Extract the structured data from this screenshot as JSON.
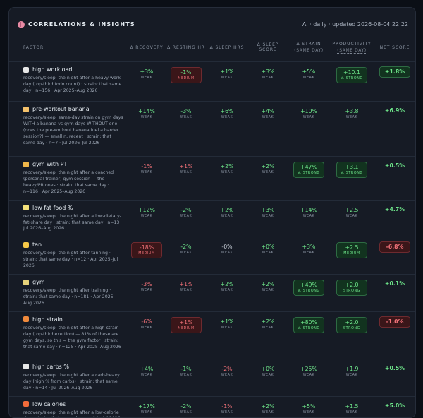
{
  "header": {
    "title": "CORRELATIONS & INSIGHTS",
    "meta": "AI · daily · updated 2026-08-04 22:22"
  },
  "columns": {
    "factor": "FACTOR",
    "recovery": "Δ RECOVERY",
    "resting_hr": "Δ RESTING HR",
    "sleep_hrs": "Δ SLEEP HRS",
    "sleep_score": "Δ SLEEP SCORE",
    "strain": "Δ STRAIN",
    "strain_sub": "(SAME DAY)",
    "productivity": "PRODUCTIVITY",
    "productivity_sub": "(SAME DAY)",
    "net": "NET SCORE"
  },
  "colors": {
    "positive": "#6ee58a",
    "negative": "#f07178",
    "neutral": "#c4cbd4"
  },
  "rows": [
    {
      "name": "high workload",
      "icon": "chart-icon",
      "icon_color": "#e6e6e6",
      "desc": "recovery/sleep: the night after a heavy-work day (top-third todo count) · strain: that same day · n=156 · Apr 2025–Aug 2026",
      "recovery": {
        "v": "+3%",
        "l": "WEAK"
      },
      "resting_hr": {
        "v": "-1%",
        "l": "MEDIUM"
      },
      "sleep_hrs": {
        "v": "+1%",
        "l": "WEAK"
      },
      "sleep_score": {
        "v": "+3%",
        "l": "WEAK"
      },
      "strain": {
        "v": "+5%",
        "l": "WEAK"
      },
      "productivity": {
        "v": "+10.1",
        "l": "V. STRONG"
      },
      "net": {
        "v": "+1.8%"
      }
    },
    {
      "name": "pre-workout banana",
      "icon": "muscle-icon",
      "icon_color": "#f5c26b",
      "desc": "recovery/sleep: same-day strain on gym days WITH a banana vs gym days WITHOUT one (does the pre-workout banana fuel a harder session?) — small n, recent · strain: that same day · n=7 · Jul 2026–Jul 2026",
      "recovery": {
        "v": "+14%",
        "l": "WEAK"
      },
      "resting_hr": {
        "v": "-3%",
        "l": "WEAK"
      },
      "sleep_hrs": {
        "v": "+6%",
        "l": "WEAK"
      },
      "sleep_score": {
        "v": "+4%",
        "l": "WEAK"
      },
      "strain": {
        "v": "+10%",
        "l": "WEAK"
      },
      "productivity": {
        "v": "+3.8",
        "l": "WEAK"
      },
      "net": {
        "v": "+6.9%"
      }
    },
    {
      "name": "gym with PT",
      "icon": "trainer-icon",
      "icon_color": "#f0b74a",
      "desc": "recovery/sleep: the night after a coached (personal-trainer) gym session — the heavy/PR ones · strain: that same day · n=116 · Apr 2025–Aug 2026",
      "recovery": {
        "v": "-1%",
        "l": "WEAK"
      },
      "resting_hr": {
        "v": "+1%",
        "l": "WEAK"
      },
      "sleep_hrs": {
        "v": "+2%",
        "l": "WEAK"
      },
      "sleep_score": {
        "v": "+2%",
        "l": "WEAK"
      },
      "strain": {
        "v": "+47%",
        "l": "V. STRONG"
      },
      "productivity": {
        "v": "+3.1",
        "l": "V. STRONG"
      },
      "net": {
        "v": "+0.5%"
      }
    },
    {
      "name": "low fat food %",
      "icon": "butter-icon",
      "icon_color": "#f3e07a",
      "desc": "recovery/sleep: the night after a low-dietary-fat-share day · strain: that same day · n=13 · Jul 2026–Aug 2026",
      "recovery": {
        "v": "+12%",
        "l": "WEAK"
      },
      "resting_hr": {
        "v": "-2%",
        "l": "WEAK"
      },
      "sleep_hrs": {
        "v": "+2%",
        "l": "WEAK"
      },
      "sleep_score": {
        "v": "+3%",
        "l": "WEAK"
      },
      "strain": {
        "v": "+14%",
        "l": "WEAK"
      },
      "productivity": {
        "v": "+2.5",
        "l": "WEAK"
      },
      "net": {
        "v": "+4.7%"
      }
    },
    {
      "name": "tan",
      "icon": "sun-icon",
      "icon_color": "#f7c948",
      "desc": "recovery/sleep: the night after tanning · strain: that same day · n=12 · Apr 2025–Jul 2026",
      "recovery": {
        "v": "-18%",
        "l": "MEDIUM"
      },
      "resting_hr": {
        "v": "-2%",
        "l": "WEAK"
      },
      "sleep_hrs": {
        "v": "-0%",
        "l": "WEAK"
      },
      "sleep_score": {
        "v": "+0%",
        "l": "WEAK"
      },
      "strain": {
        "v": "+3%",
        "l": "WEAK"
      },
      "productivity": {
        "v": "+2.5",
        "l": "MEDIUM"
      },
      "net": {
        "v": "-6.8%"
      }
    },
    {
      "name": "gym",
      "icon": "dumbbell-icon",
      "icon_color": "#e6d27a",
      "desc": "recovery/sleep: the night after training · strain: that same day · n=181 · Apr 2025–Aug 2026",
      "recovery": {
        "v": "-3%",
        "l": "WEAK"
      },
      "resting_hr": {
        "v": "+1%",
        "l": "WEAK"
      },
      "sleep_hrs": {
        "v": "+2%",
        "l": "WEAK"
      },
      "sleep_score": {
        "v": "+2%",
        "l": "WEAK"
      },
      "strain": {
        "v": "+49%",
        "l": "V. STRONG"
      },
      "productivity": {
        "v": "+2.0",
        "l": "STRONG"
      },
      "net": {
        "v": "+0.1%"
      }
    },
    {
      "name": "high strain",
      "icon": "strain-icon",
      "icon_color": "#f08a3c",
      "desc": "recovery/sleep: the night after a high-strain day (top-third exertion) — 81% of these are gym days, so this ≈ the gym factor · strain: that same day · n=125 · Apr 2025–Aug 2026",
      "recovery": {
        "v": "-6%",
        "l": "WEAK"
      },
      "resting_hr": {
        "v": "+1%",
        "l": "MEDIUM"
      },
      "sleep_hrs": {
        "v": "+1%",
        "l": "WEAK"
      },
      "sleep_score": {
        "v": "+2%",
        "l": "WEAK"
      },
      "strain": {
        "v": "+80%",
        "l": "V. STRONG"
      },
      "productivity": {
        "v": "+2.0",
        "l": "STRONG"
      },
      "net": {
        "v": "-1.0%"
      }
    },
    {
      "name": "high carbs %",
      "icon": "rice-icon",
      "icon_color": "#e8e8e8",
      "desc": "recovery/sleep: the night after a carb-heavy day (high % from carbs) · strain: that same day · n=14 · Jul 2026–Aug 2026",
      "recovery": {
        "v": "+4%",
        "l": "WEAK"
      },
      "resting_hr": {
        "v": "-1%",
        "l": "WEAK"
      },
      "sleep_hrs": {
        "v": "-2%",
        "l": "WEAK"
      },
      "sleep_score": {
        "v": "+0%",
        "l": "WEAK"
      },
      "strain": {
        "v": "+25%",
        "l": "WEAK"
      },
      "productivity": {
        "v": "+1.9",
        "l": "WEAK"
      },
      "net": {
        "v": "+0.5%"
      }
    },
    {
      "name": "low calories",
      "icon": "fire-icon",
      "icon_color": "#f26b3a",
      "desc": "recovery/sleep: the night after a low-calorie day · strain: that same day · n=14 · Jul 2026–Aug 2026",
      "recovery": {
        "v": "+17%",
        "l": "WEAK"
      },
      "resting_hr": {
        "v": "-2%",
        "l": "WEAK"
      },
      "sleep_hrs": {
        "v": "-1%",
        "l": "WEAK"
      },
      "sleep_score": {
        "v": "+2%",
        "l": "WEAK"
      },
      "strain": {
        "v": "+5%",
        "l": "WEAK"
      },
      "productivity": {
        "v": "+1.5",
        "l": "WEAK"
      },
      "net": {
        "v": "+5.0%"
      }
    }
  ]
}
